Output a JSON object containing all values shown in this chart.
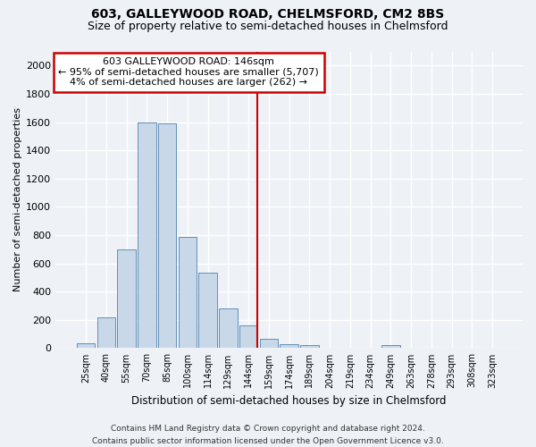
{
  "title1": "603, GALLEYWOOD ROAD, CHELMSFORD, CM2 8BS",
  "title2": "Size of property relative to semi-detached houses in Chelmsford",
  "xlabel": "Distribution of semi-detached houses by size in Chelmsford",
  "ylabel": "Number of semi-detached properties",
  "categories": [
    "25sqm",
    "40sqm",
    "55sqm",
    "70sqm",
    "85sqm",
    "100sqm",
    "114sqm",
    "129sqm",
    "144sqm",
    "159sqm",
    "174sqm",
    "189sqm",
    "204sqm",
    "219sqm",
    "234sqm",
    "249sqm",
    "263sqm",
    "278sqm",
    "293sqm",
    "308sqm",
    "323sqm"
  ],
  "values": [
    35,
    215,
    700,
    1600,
    1590,
    785,
    535,
    280,
    160,
    65,
    30,
    20,
    5,
    0,
    0,
    20,
    0,
    0,
    0,
    0,
    0
  ],
  "bar_color": "#c8d8e8",
  "bar_edge_color": "#6090b8",
  "vline_x": 8.45,
  "annotation_title": "603 GALLEYWOOD ROAD: 146sqm",
  "annotation_line1": "← 95% of semi-detached houses are smaller (5,707)",
  "annotation_line2": "4% of semi-detached houses are larger (262) →",
  "vline_color": "#cc0000",
  "box_edge_color": "#cc0000",
  "footer1": "Contains HM Land Registry data © Crown copyright and database right 2024.",
  "footer2": "Contains public sector information licensed under the Open Government Licence v3.0.",
  "ylim": [
    0,
    2100
  ],
  "yticks": [
    0,
    200,
    400,
    600,
    800,
    1000,
    1200,
    1400,
    1600,
    1800,
    2000
  ],
  "background_color": "#eef2f7",
  "grid_color": "#ffffff",
  "title1_fontsize": 10,
  "title2_fontsize": 9,
  "xlabel_fontsize": 8.5,
  "ylabel_fontsize": 8,
  "tick_fontsize": 8,
  "xtick_fontsize": 7,
  "annotation_fontsize": 8,
  "footer_fontsize": 6.5
}
